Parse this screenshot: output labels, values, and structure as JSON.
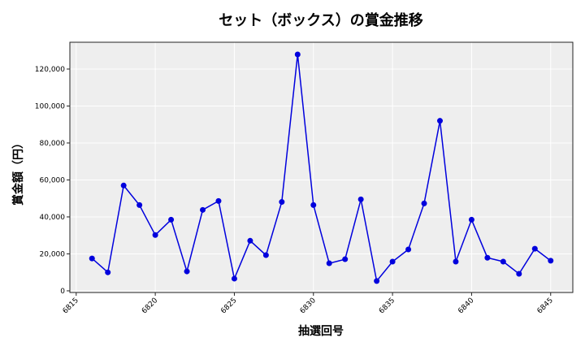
{
  "chart_data": {
    "type": "line",
    "title": "セット（ボックス）の賞金推移",
    "xlabel": "抽選回号",
    "ylabel": "賞金額（円）",
    "x": [
      6816,
      6817,
      6818,
      6819,
      6820,
      6821,
      6822,
      6823,
      6824,
      6825,
      6826,
      6827,
      6828,
      6829,
      6830,
      6831,
      6832,
      6833,
      6834,
      6835,
      6836,
      6837,
      6838,
      6839,
      6840,
      6841,
      6842,
      6843,
      6844,
      6845
    ],
    "series": [
      {
        "name": "賞金額",
        "color": "#0000dd",
        "values": [
          17500,
          10000,
          57000,
          46400,
          30200,
          38500,
          10500,
          43800,
          48600,
          6600,
          27100,
          19300,
          48100,
          127900,
          46400,
          14900,
          17100,
          49500,
          5300,
          15800,
          22400,
          47300,
          92000,
          15800,
          38500,
          17900,
          15800,
          9200,
          22800,
          16300
        ]
      }
    ],
    "xticks": [
      6815,
      6820,
      6825,
      6830,
      6835,
      6840,
      6845
    ],
    "yticks": [
      0,
      20000,
      40000,
      60000,
      80000,
      100000,
      120000
    ],
    "ytick_labels": [
      "0",
      "20,000",
      "40,000",
      "60,000",
      "80,000",
      "100,000",
      "120,000"
    ],
    "xlim": [
      6814.6,
      6846.4
    ],
    "ylim": [
      -900,
      134500
    ],
    "grid": true,
    "background": "#eeeeee",
    "legend": null
  }
}
